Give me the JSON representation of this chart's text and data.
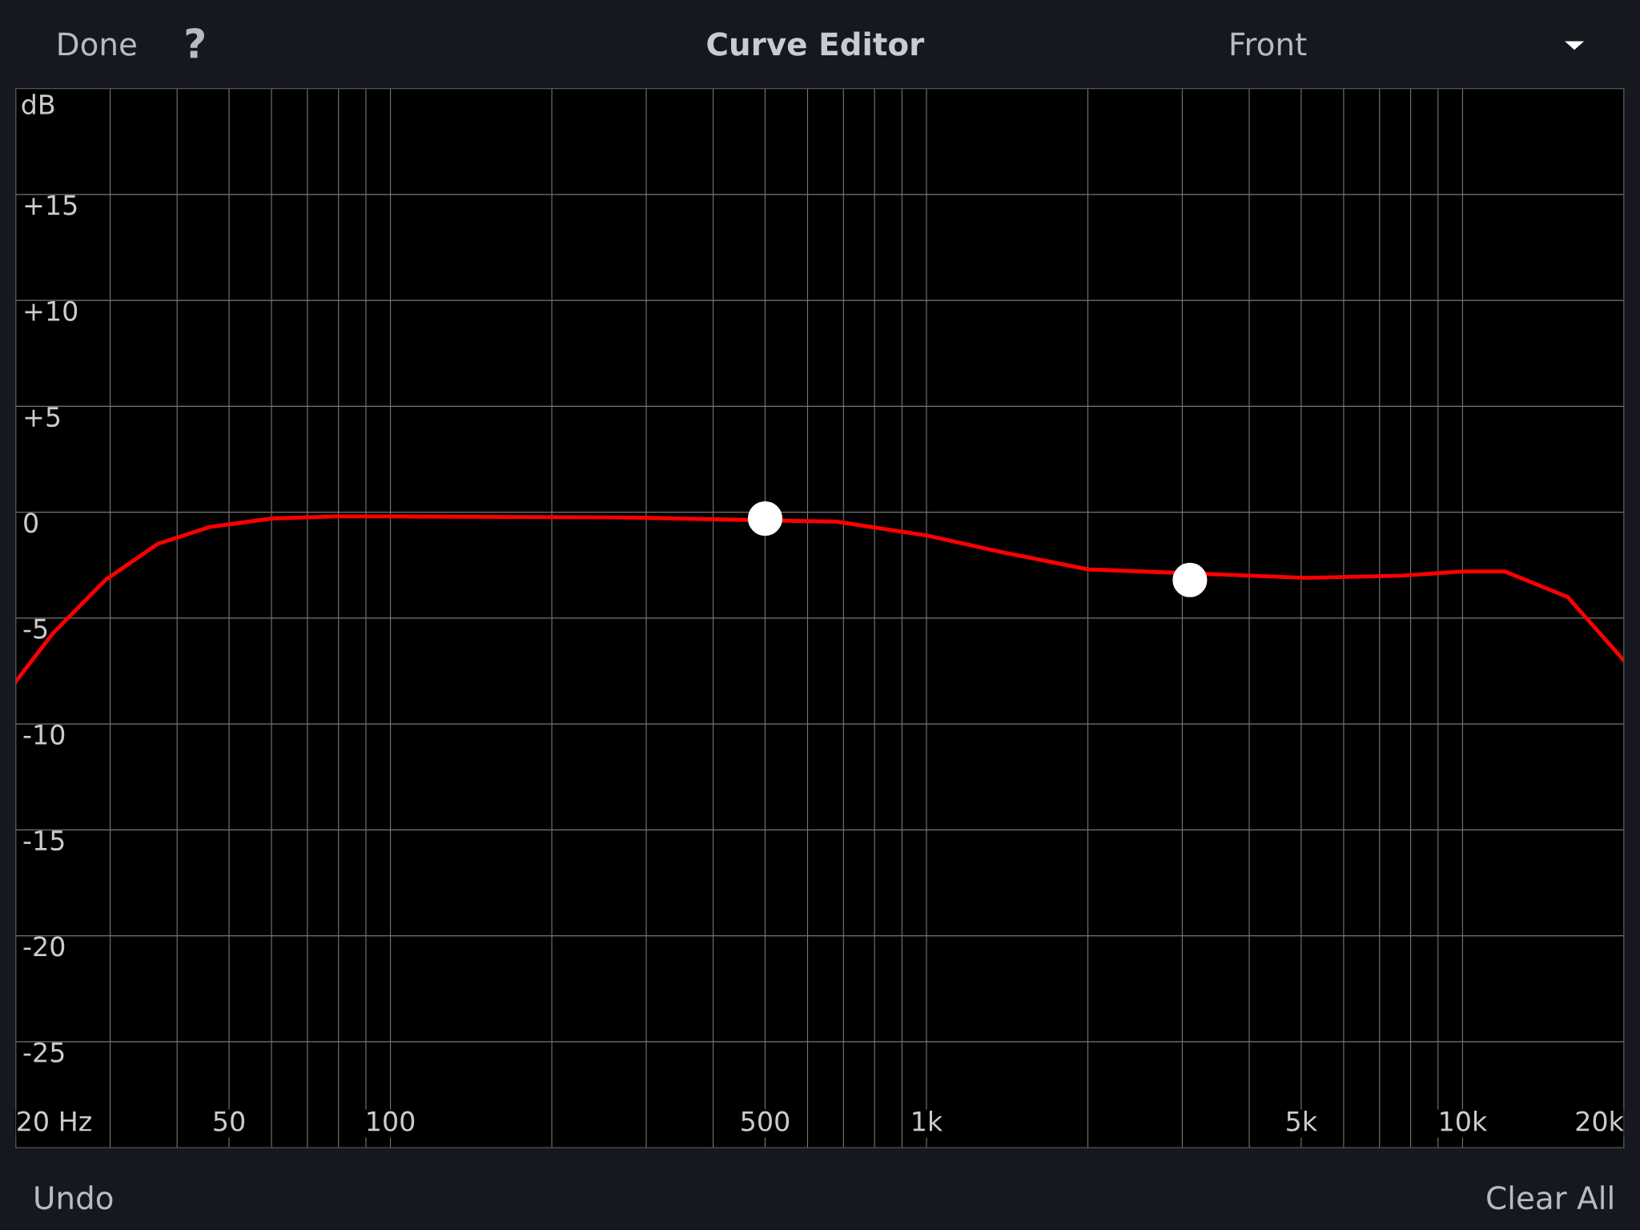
{
  "chart_data": {
    "type": "line",
    "title": "Curve Editor",
    "ylabel": "dB",
    "annotations": [
      "Done",
      "?",
      "Front",
      "Undo",
      "Clear All"
    ],
    "log": "x",
    "xlim": [
      20,
      20000
    ],
    "ylim": [
      -30,
      20
    ],
    "xticks": [
      {
        "value": 20,
        "label": "20 Hz"
      },
      {
        "value": 30,
        "label": null
      },
      {
        "value": 40,
        "label": null
      },
      {
        "value": 50,
        "label": "50"
      },
      {
        "value": 60,
        "label": null
      },
      {
        "value": 70,
        "label": null
      },
      {
        "value": 80,
        "label": null
      },
      {
        "value": 90,
        "label": null
      },
      {
        "value": 100,
        "label": "100"
      },
      {
        "value": 200,
        "label": null
      },
      {
        "value": 300,
        "label": null
      },
      {
        "value": 400,
        "label": null
      },
      {
        "value": 500,
        "label": "500"
      },
      {
        "value": 600,
        "label": null
      },
      {
        "value": 700,
        "label": null
      },
      {
        "value": 800,
        "label": null
      },
      {
        "value": 900,
        "label": null
      },
      {
        "value": 1000,
        "label": "1k"
      },
      {
        "value": 2000,
        "label": null
      },
      {
        "value": 3000,
        "label": null
      },
      {
        "value": 4000,
        "label": null
      },
      {
        "value": 5000,
        "label": "5k"
      },
      {
        "value": 6000,
        "label": null
      },
      {
        "value": 7000,
        "label": null
      },
      {
        "value": 8000,
        "label": null
      },
      {
        "value": 9000,
        "label": null
      },
      {
        "value": 10000,
        "label": "10k"
      },
      {
        "value": 20000,
        "label": "20k"
      }
    ],
    "yticks": [
      {
        "value": 15,
        "label": "+15"
      },
      {
        "value": 10,
        "label": "+10"
      },
      {
        "value": 5,
        "label": "+5"
      },
      0,
      -5,
      -10,
      -15,
      -20,
      -25
    ],
    "grid": true,
    "series": [
      {
        "color": "#ff0000",
        "marker": "none",
        "line_style": "solid",
        "x": [
          20,
          23.5,
          29.4,
          36.8,
          46,
          60,
          79,
          100,
          277,
          680,
          1000,
          1390,
          2000,
          5100,
          7700,
          10000,
          12000,
          15700,
          20000
        ],
        "values": [
          -8.0,
          -5.7,
          -3.2,
          -1.5,
          -0.7,
          -0.3,
          -0.2,
          -0.2,
          -0.25,
          -0.45,
          -1.1,
          -1.9,
          -2.7,
          -3.1,
          -3.0,
          -2.8,
          -2.8,
          -4.0,
          -7.0
        ]
      },
      {
        "type": "scatter",
        "color": "#ffffff",
        "marker": "circle",
        "x": [
          500,
          3100
        ],
        "values": [
          -0.3,
          -3.2
        ]
      }
    ]
  }
}
